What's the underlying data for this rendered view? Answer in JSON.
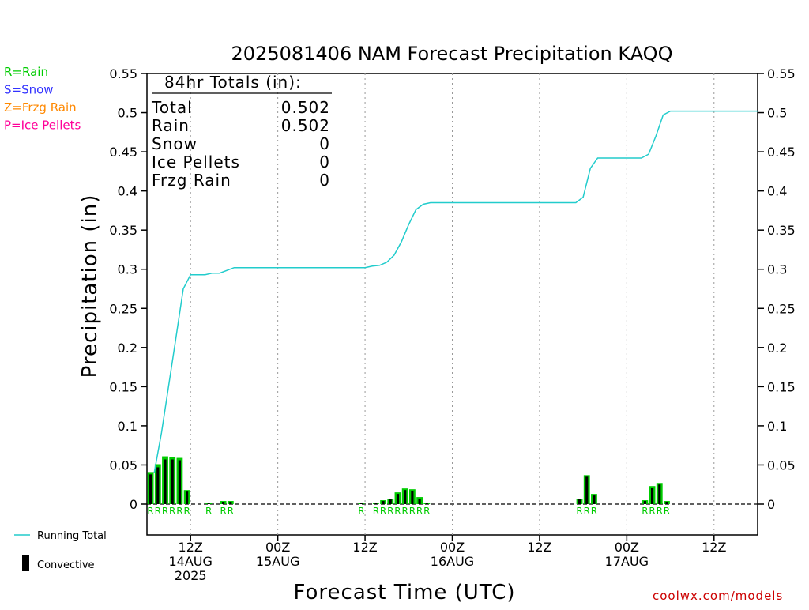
{
  "chart_data": {
    "type": "bar",
    "title": "2025081406 NAM Forecast Precipitation KAQQ",
    "xlabel": "Forecast Time (UTC)",
    "ylabel": "Precipitation (in)",
    "ylim": [
      0,
      0.55
    ],
    "yticks": [
      "0",
      "0.05",
      "0.1",
      "0.15",
      "0.2",
      "0.25",
      "0.3",
      "0.35",
      "0.4",
      "0.45",
      "0.5",
      "0.55"
    ],
    "x_axis": {
      "start": "2025-08-14 06Z",
      "end": "2025-08-17 18Z",
      "step_hours": 1,
      "tick_labels": [
        {
          "time": "2025-08-14 12Z",
          "lines": [
            "12Z",
            "14AUG",
            "2025"
          ]
        },
        {
          "time": "2025-08-15 00Z",
          "lines": [
            "00Z",
            "15AUG"
          ]
        },
        {
          "time": "2025-08-15 12Z",
          "lines": [
            "12Z"
          ]
        },
        {
          "time": "2025-08-16 00Z",
          "lines": [
            "00Z",
            "16AUG"
          ]
        },
        {
          "time": "2025-08-16 12Z",
          "lines": [
            "12Z"
          ]
        },
        {
          "time": "2025-08-17 00Z",
          "lines": [
            "00Z",
            "17AUG"
          ]
        },
        {
          "time": "2025-08-17 12Z",
          "lines": [
            "12Z"
          ]
        }
      ]
    },
    "series": [
      {
        "name": "Running Total",
        "type": "line",
        "color": "#22cccc",
        "points": [
          [
            "2025-08-14 07Z",
            0.04
          ],
          [
            "2025-08-14 08Z",
            0.091
          ],
          [
            "2025-08-14 09Z",
            0.152
          ],
          [
            "2025-08-14 10Z",
            0.213
          ],
          [
            "2025-08-14 11Z",
            0.275
          ],
          [
            "2025-08-14 12Z",
            0.293
          ],
          [
            "2025-08-14 14Z",
            0.293
          ],
          [
            "2025-08-14 15Z",
            0.295
          ],
          [
            "2025-08-14 16Z",
            0.295
          ],
          [
            "2025-08-14 18Z",
            0.302
          ],
          [
            "2025-08-15 12Z",
            0.302
          ],
          [
            "2025-08-15 13Z",
            0.304
          ],
          [
            "2025-08-15 14Z",
            0.305
          ],
          [
            "2025-08-15 15Z",
            0.309
          ],
          [
            "2025-08-15 16Z",
            0.318
          ],
          [
            "2025-08-15 17Z",
            0.335
          ],
          [
            "2025-08-15 18Z",
            0.357
          ],
          [
            "2025-08-15 19Z",
            0.376
          ],
          [
            "2025-08-15 20Z",
            0.383
          ],
          [
            "2025-08-15 21Z",
            0.385
          ],
          [
            "2025-08-16 17Z",
            0.385
          ],
          [
            "2025-08-16 18Z",
            0.392
          ],
          [
            "2025-08-16 19Z",
            0.429
          ],
          [
            "2025-08-16 20Z",
            0.442
          ],
          [
            "2025-08-17 02Z",
            0.442
          ],
          [
            "2025-08-17 03Z",
            0.447
          ],
          [
            "2025-08-17 04Z",
            0.47
          ],
          [
            "2025-08-17 05Z",
            0.497
          ],
          [
            "2025-08-17 06Z",
            0.502
          ],
          [
            "2025-08-17 18Z",
            0.502
          ]
        ]
      },
      {
        "name": "Precipitation",
        "type": "bar",
        "color": "#00cc00",
        "bars": [
          {
            "time": "2025-08-14 07Z",
            "value": 0.041,
            "convective": 0.038
          },
          {
            "time": "2025-08-14 08Z",
            "value": 0.051,
            "convective": 0.047
          },
          {
            "time": "2025-08-14 09Z",
            "value": 0.061,
            "convective": 0.057
          },
          {
            "time": "2025-08-14 10Z",
            "value": 0.06,
            "convective": 0.057
          },
          {
            "time": "2025-08-14 11Z",
            "value": 0.059,
            "convective": 0.056
          },
          {
            "time": "2025-08-14 12Z",
            "value": 0.018,
            "convective": 0.016
          },
          {
            "time": "2025-08-14 15Z",
            "value": 0.002,
            "convective": 0.001
          },
          {
            "time": "2025-08-14 17Z",
            "value": 0.004,
            "convective": 0.003
          },
          {
            "time": "2025-08-14 18Z",
            "value": 0.004,
            "convective": 0.003
          },
          {
            "time": "2025-08-15 12Z",
            "value": 0.002,
            "convective": 0.001
          },
          {
            "time": "2025-08-15 14Z",
            "value": 0.002,
            "convective": 0.001
          },
          {
            "time": "2025-08-15 15Z",
            "value": 0.005,
            "convective": 0.004
          },
          {
            "time": "2025-08-15 16Z",
            "value": 0.007,
            "convective": 0.006
          },
          {
            "time": "2025-08-15 17Z",
            "value": 0.015,
            "convective": 0.013
          },
          {
            "time": "2025-08-15 18Z",
            "value": 0.02,
            "convective": 0.018
          },
          {
            "time": "2025-08-15 19Z",
            "value": 0.019,
            "convective": 0.017
          },
          {
            "time": "2025-08-15 20Z",
            "value": 0.009,
            "convective": 0.007
          },
          {
            "time": "2025-08-15 21Z",
            "value": 0.002,
            "convective": 0.001
          },
          {
            "time": "2025-08-16 18Z",
            "value": 0.007,
            "convective": 0.006
          },
          {
            "time": "2025-08-16 19Z",
            "value": 0.037,
            "convective": 0.035
          },
          {
            "time": "2025-08-16 20Z",
            "value": 0.013,
            "convective": 0.011
          },
          {
            "time": "2025-08-17 03Z",
            "value": 0.005,
            "convective": 0.004
          },
          {
            "time": "2025-08-17 04Z",
            "value": 0.023,
            "convective": 0.021
          },
          {
            "time": "2025-08-17 05Z",
            "value": 0.027,
            "convective": 0.025
          },
          {
            "time": "2025-08-17 06Z",
            "value": 0.004,
            "convective": 0.003
          }
        ]
      }
    ],
    "type_labels": [
      {
        "time": "2025-08-14 07Z",
        "label": "R"
      },
      {
        "time": "2025-08-14 08Z",
        "label": "R"
      },
      {
        "time": "2025-08-14 09Z",
        "label": "R"
      },
      {
        "time": "2025-08-14 10Z",
        "label": "R"
      },
      {
        "time": "2025-08-14 11Z",
        "label": "R"
      },
      {
        "time": "2025-08-14 12Z",
        "label": "R"
      },
      {
        "time": "2025-08-14 15Z",
        "label": "R"
      },
      {
        "time": "2025-08-14 17Z",
        "label": "R"
      },
      {
        "time": "2025-08-14 18Z",
        "label": "R"
      },
      {
        "time": "2025-08-15 12Z",
        "label": "R"
      },
      {
        "time": "2025-08-15 14Z",
        "label": "R"
      },
      {
        "time": "2025-08-15 15Z",
        "label": "R"
      },
      {
        "time": "2025-08-15 16Z",
        "label": "R"
      },
      {
        "time": "2025-08-15 17Z",
        "label": "R"
      },
      {
        "time": "2025-08-15 18Z",
        "label": "R"
      },
      {
        "time": "2025-08-15 19Z",
        "label": "R"
      },
      {
        "time": "2025-08-15 20Z",
        "label": "R"
      },
      {
        "time": "2025-08-15 21Z",
        "label": "R"
      },
      {
        "time": "2025-08-16 18Z",
        "label": "R"
      },
      {
        "time": "2025-08-16 19Z",
        "label": "R"
      },
      {
        "time": "2025-08-16 20Z",
        "label": "R"
      },
      {
        "time": "2025-08-17 03Z",
        "label": "R"
      },
      {
        "time": "2025-08-17 04Z",
        "label": "R"
      },
      {
        "time": "2025-08-17 05Z",
        "label": "R"
      },
      {
        "time": "2025-08-17 06Z",
        "label": "R"
      }
    ],
    "totals_box": {
      "header": "84hr Totals (in):",
      "rows": [
        {
          "label": "Total",
          "value": "0.502"
        },
        {
          "label": "Rain",
          "value": "0.502"
        },
        {
          "label": "Snow",
          "value": "0"
        },
        {
          "label": "Ice Pellets",
          "value": "0"
        },
        {
          "label": "Frzg Rain",
          "value": "0"
        }
      ]
    },
    "precip_type_key": [
      {
        "text": "R=Rain",
        "color": "#00cc00"
      },
      {
        "text": "S=Snow",
        "color": "#3333ff"
      },
      {
        "text": "Z=Frzg Rain",
        "color": "#ff8800"
      },
      {
        "text": "P=Ice Pellets",
        "color": "#ff0099"
      }
    ],
    "legend": [
      {
        "name": "Running Total",
        "symbol": "line",
        "color": "#22cccc"
      },
      {
        "name": "Convective",
        "symbol": "bar",
        "color": "#000000"
      }
    ],
    "grid": "vertical dotted lines at 12-hourly ticks",
    "credit": "coolwx.com/models"
  }
}
